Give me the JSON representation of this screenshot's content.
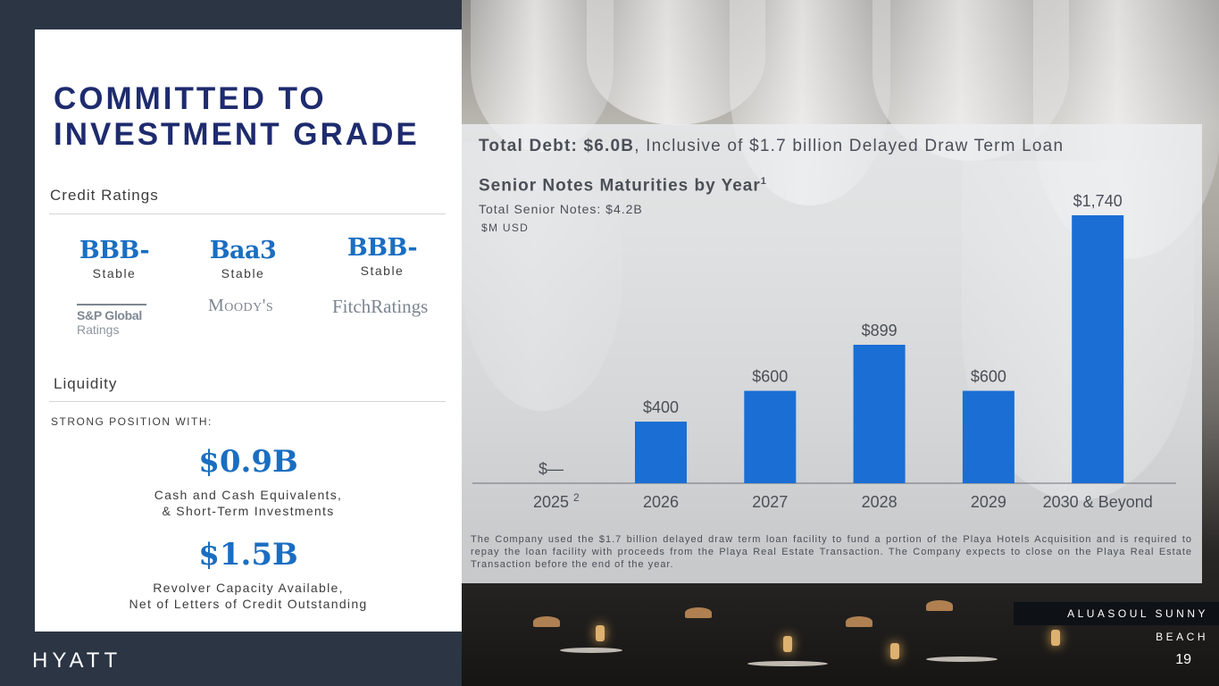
{
  "headline": {
    "line1": "COMMITTED TO",
    "line2": "INVESTMENT GRADE"
  },
  "credit_ratings": {
    "label": "Credit Ratings",
    "ratings": [
      {
        "grade": "BBB-",
        "outlook": "Stable",
        "agency": "S&P Global",
        "agency_sub": "Ratings"
      },
      {
        "grade": "Baa3",
        "outlook": "Stable",
        "agency": "Moody's"
      },
      {
        "grade": "BBB-",
        "outlook": "Stable",
        "agency": "FitchRatings"
      }
    ]
  },
  "liquidity": {
    "label": "Liquidity",
    "intro": "STRONG POSITION WITH:",
    "items": [
      {
        "value": "$0.9B",
        "caption_line1": "Cash and Cash Equivalents,",
        "caption_line2": "& Short-Term Investments"
      },
      {
        "value": "$1.5B",
        "caption_line1": "Revolver Capacity Available,",
        "caption_line2": "Net of Letters of Credit Outstanding"
      }
    ]
  },
  "debt": {
    "total_bold": "Total Debt: $6.0B",
    "total_rest": ", Inclusive of $1.7 billion Delayed Draw Term Loan"
  },
  "chart_data": {
    "type": "bar",
    "title": "Senior Notes Maturities by Year",
    "title_footnote": "1",
    "subtitle": "Total Senior Notes: $4.2B",
    "unit": "$M USD",
    "categories": [
      "2025",
      "2026",
      "2027",
      "2028",
      "2029",
      "2030 & Beyond"
    ],
    "category_footnotes": [
      "2",
      "",
      "",
      "",
      "",
      ""
    ],
    "values": [
      0,
      400,
      600,
      899,
      600,
      1740
    ],
    "labels": [
      "$—",
      "$400",
      "$600",
      "$899",
      "$600",
      "$1,740"
    ],
    "ylim": [
      0,
      1740
    ],
    "bar_color": "#1a6ed4",
    "grid": false,
    "legend": "none"
  },
  "footnote": "The Company used the $1.7 billion delayed draw term loan facility to fund a portion of the Playa Hotels Acquisition and is required to repay the loan facility with proceeds from the Playa Real Estate Transaction. The Company expects to close on the Playa Real Estate Transaction before the end of the year.",
  "brand": "HYATT",
  "location": "ALUASOUL SUNNY BEACH",
  "page_number": "19",
  "colors": {
    "navy": "#1e2b6e",
    "blue": "#1a6ec2",
    "bg": "#2b3544"
  }
}
